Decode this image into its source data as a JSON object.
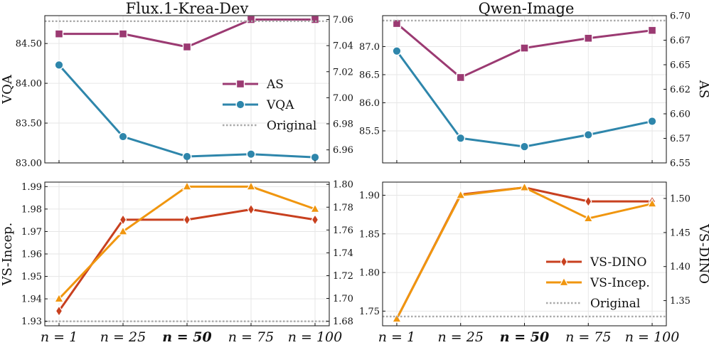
{
  "chart_data": [
    {
      "type": "line",
      "title": "Flux.1-Krea-Dev",
      "categories": [
        "n = 1",
        "n = 25",
        "n = 50",
        "n = 75",
        "n = 100"
      ],
      "highlight_category": "n = 50",
      "left_axis": {
        "label": "VQA",
        "ylim": [
          83.0,
          84.85
        ],
        "ticks": [
          "83.00",
          "83.50",
          "84.00",
          "84.50"
        ],
        "tick_values": [
          83.0,
          83.5,
          84.0,
          84.5
        ]
      },
      "right_axis": {
        "label": "",
        "ylim": [
          6.95,
          7.063
        ],
        "ticks": [
          "6.96",
          "6.98",
          "7.00",
          "7.02",
          "7.04",
          "7.06"
        ],
        "tick_values": [
          6.96,
          6.98,
          7.0,
          7.02,
          7.04,
          7.06
        ]
      },
      "series": [
        {
          "name": "AS",
          "axis": "right",
          "color": "#9b3a72",
          "marker": "square",
          "values": [
            7.049,
            7.049,
            7.039,
            7.06,
            7.06
          ]
        },
        {
          "name": "VQA",
          "axis": "left",
          "color": "#2e86ab",
          "marker": "circle",
          "values": [
            84.23,
            83.33,
            83.08,
            83.11,
            83.07
          ]
        },
        {
          "name": "Original",
          "axis": "left",
          "color": "#aaaaaa",
          "dashed": true,
          "values": [
            84.78,
            84.78,
            84.78,
            84.78,
            84.78
          ]
        }
      ],
      "legend": [
        "AS",
        "VQA",
        "Original"
      ],
      "legend_position": "right-middle"
    },
    {
      "type": "line",
      "title": "Qwen-Image",
      "categories": [
        "n = 1",
        "n = 25",
        "n = 50",
        "n = 75",
        "n = 100"
      ],
      "highlight_category": "n = 50",
      "left_axis": {
        "label": "",
        "ylim": [
          84.93,
          87.55
        ],
        "ticks": [
          "85.5",
          "86.0",
          "86.5",
          "87.0"
        ],
        "tick_values": [
          85.5,
          86.0,
          86.5,
          87.0
        ]
      },
      "right_axis": {
        "label": "AS",
        "ylim": [
          6.55,
          6.7
        ],
        "ticks": [
          "6.55",
          "6.57",
          "6.60",
          "6.62",
          "6.65",
          "6.67",
          "6.70"
        ],
        "tick_values": [
          6.55,
          6.575,
          6.6,
          6.625,
          6.65,
          6.675,
          6.7
        ]
      },
      "series": [
        {
          "name": "AS",
          "axis": "right",
          "color": "#9b3a72",
          "marker": "square",
          "values": [
            6.692,
            6.637,
            6.667,
            6.677,
            6.685
          ]
        },
        {
          "name": "VQA",
          "axis": "left",
          "color": "#2e86ab",
          "marker": "circle",
          "values": [
            86.92,
            85.37,
            85.22,
            85.43,
            85.67
          ]
        },
        {
          "name": "Original",
          "axis": "right",
          "color": "#aaaaaa",
          "dashed": true,
          "values": [
            6.695,
            6.695,
            6.695,
            6.695,
            6.695
          ]
        }
      ]
    },
    {
      "type": "line",
      "title": "",
      "categories": [
        "n = 1",
        "n = 25",
        "n = 50",
        "n = 75",
        "n = 100"
      ],
      "highlight_category": "n = 50",
      "left_axis": {
        "label": "VS-Incep.",
        "ylim": [
          1.928,
          1.992
        ],
        "ticks": [
          "1.93",
          "1.94",
          "1.95",
          "1.96",
          "1.97",
          "1.98",
          "1.99"
        ],
        "tick_values": [
          1.93,
          1.94,
          1.95,
          1.96,
          1.97,
          1.98,
          1.99
        ]
      },
      "right_axis": {
        "label": "",
        "ylim": [
          1.676,
          1.802
        ],
        "ticks": [
          "1.68",
          "1.70",
          "1.72",
          "1.74",
          "1.76",
          "1.78",
          "1.80"
        ],
        "tick_values": [
          1.68,
          1.7,
          1.72,
          1.74,
          1.76,
          1.78,
          1.8
        ]
      },
      "series": [
        {
          "name": "VS-DINO",
          "axis": "right",
          "color": "#c8401f",
          "marker": "diamond",
          "values": [
            1.689,
            1.769,
            1.769,
            1.778,
            1.769
          ]
        },
        {
          "name": "VS-Incep.",
          "axis": "left",
          "color": "#f0960f",
          "marker": "triangle",
          "values": [
            1.94,
            1.97,
            1.99,
            1.99,
            1.98
          ]
        },
        {
          "name": "Original",
          "axis": "left",
          "color": "#aaaaaa",
          "dashed": true,
          "values": [
            1.93,
            1.93,
            1.93,
            1.93,
            1.93
          ]
        }
      ]
    },
    {
      "type": "line",
      "title": "",
      "categories": [
        "n = 1",
        "n = 25",
        "n = 50",
        "n = 75",
        "n = 100"
      ],
      "highlight_category": "n = 50",
      "left_axis": {
        "label": "",
        "ylim": [
          1.731,
          1.917
        ],
        "ticks": [
          "1.75",
          "1.80",
          "1.85",
          "1.90"
        ],
        "tick_values": [
          1.75,
          1.8,
          1.85,
          1.9
        ]
      },
      "right_axis": {
        "label": "VS-DINO",
        "ylim": [
          1.313,
          1.524
        ],
        "ticks": [
          "1.35",
          "1.40",
          "1.45",
          "1.50"
        ],
        "tick_values": [
          1.35,
          1.4,
          1.45,
          1.5
        ]
      },
      "series": [
        {
          "name": "VS-DINO",
          "axis": "left",
          "color": "#c8401f",
          "marker": "diamond",
          "values": [
            1.74,
            1.901,
            1.91,
            1.892,
            1.892
          ]
        },
        {
          "name": "VS-Incep.",
          "axis": "left",
          "color": "#f0960f",
          "marker": "triangle",
          "values": [
            1.74,
            1.9,
            1.91,
            1.87,
            1.889
          ]
        },
        {
          "name": "Original",
          "axis": "left",
          "color": "#aaaaaa",
          "dashed": true,
          "values": [
            1.743,
            1.743,
            1.743,
            1.743,
            1.743
          ]
        }
      ],
      "legend": [
        "VS-DINO",
        "VS-Incep.",
        "Original"
      ],
      "legend_position": "lower-right"
    }
  ]
}
